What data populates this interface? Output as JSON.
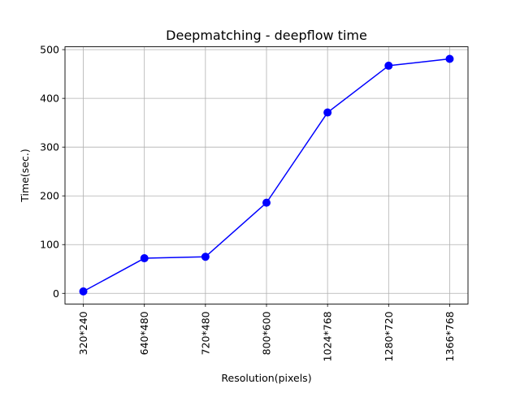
{
  "chart_data": {
    "type": "line",
    "title": "Deepmatching - deepflow time",
    "xlabel": "Resolution(pixels)",
    "ylabel": "Time(sec.)",
    "categories": [
      "320*240",
      "640*480",
      "720*480",
      "800*600",
      "1024*768",
      "1280*720",
      "1366*768"
    ],
    "series": [
      {
        "values": [
          4,
          72,
          75,
          186,
          371,
          467,
          481
        ],
        "color": "#0000ff",
        "marker": "circle"
      }
    ],
    "yticks": [
      0,
      100,
      200,
      300,
      400,
      500
    ],
    "ylim": [
      -21.85,
      505.85
    ],
    "grid": true
  }
}
